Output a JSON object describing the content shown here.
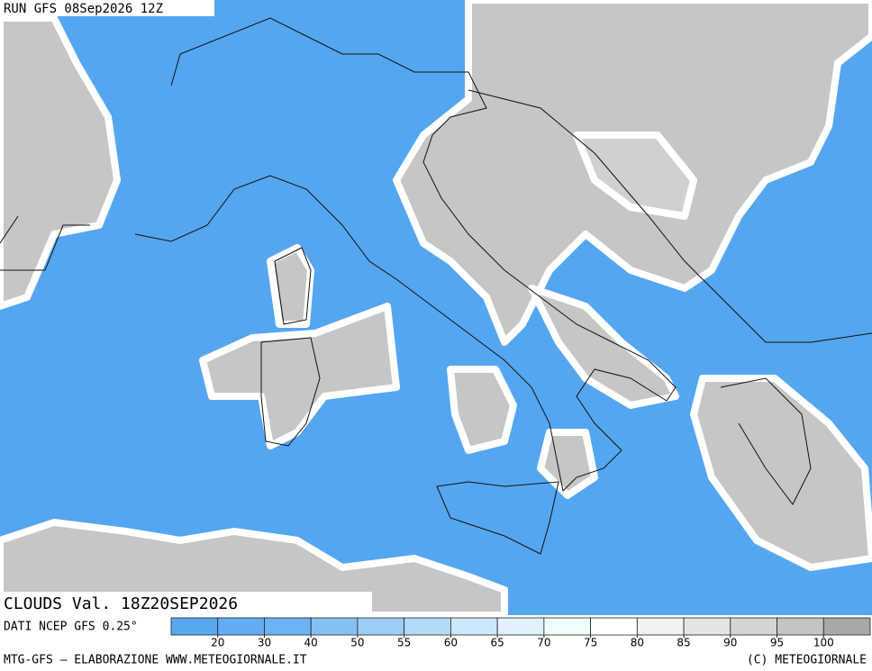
{
  "header": {
    "run": "RUN GFS 08Sep2026 12Z",
    "field": "CLOUDS Val. 18Z20SEP2026"
  },
  "legend": {
    "source": "DATI NCEP GFS 0.25°",
    "colors": [
      "#58a8f0",
      "#62adf2",
      "#6db3f3",
      "#85c0f5",
      "#9dcdf7",
      "#b5daf9",
      "#cde7fb",
      "#e2f2fc",
      "#effdff",
      "#ffffff",
      "#f2f2f2",
      "#e4e4e4",
      "#d4d4d4",
      "#c4c4c4",
      "#a8a8a8"
    ],
    "ticks": [
      20,
      30,
      40,
      50,
      55,
      60,
      65,
      70,
      75,
      80,
      85,
      90,
      95,
      100
    ]
  },
  "footer": {
    "credit": "MTG-GFS — ELABORAZIONE WWW.METEOGIORNALE.IT",
    "copyright": "(C) METEOGIORNALE"
  }
}
